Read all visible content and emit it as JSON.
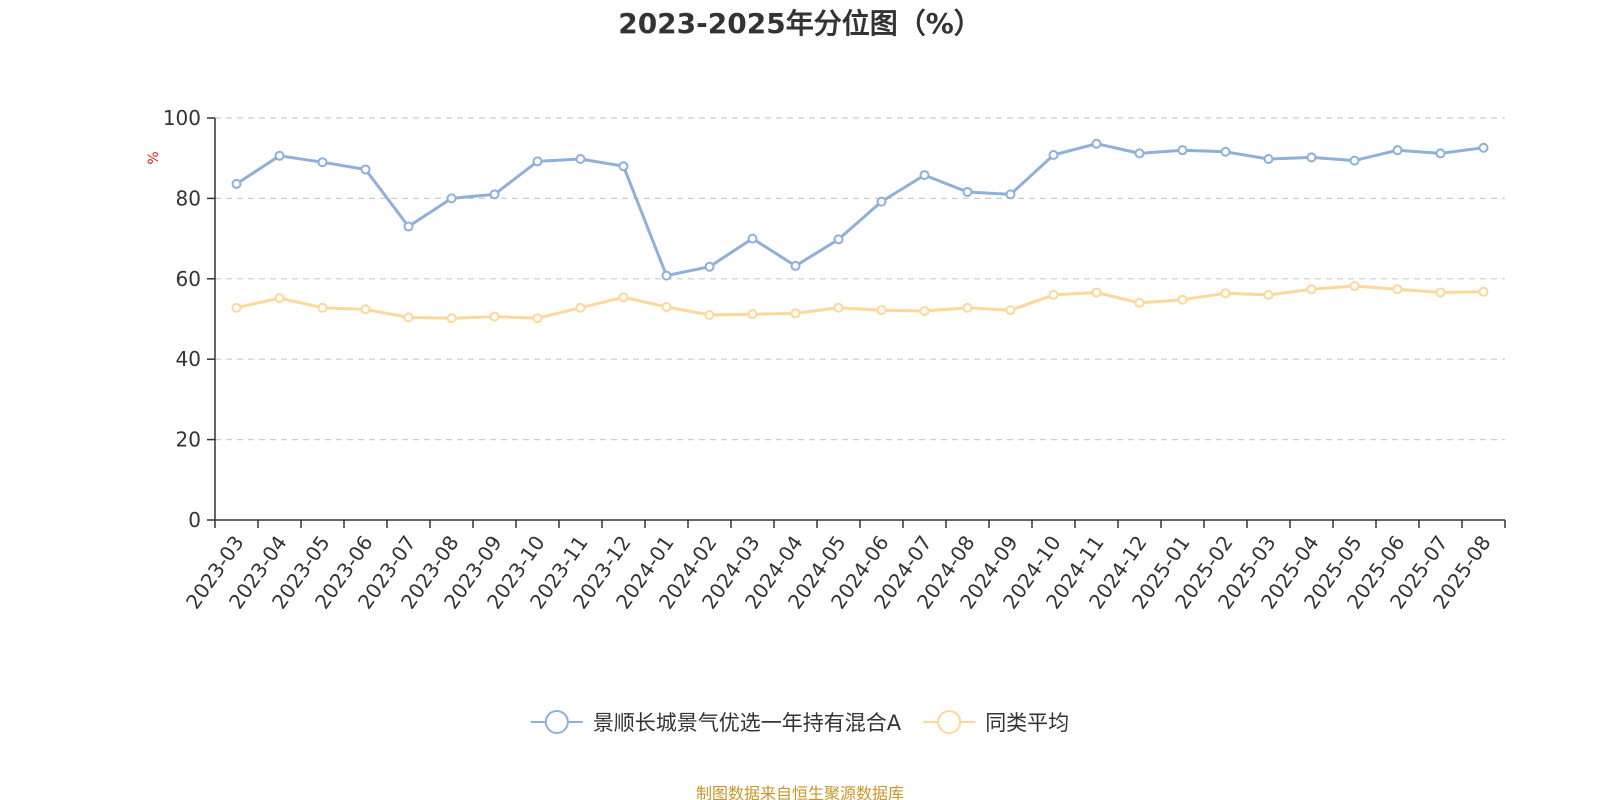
{
  "title": "2023-2025年分位图（%）",
  "source": "制图数据来自恒生聚源数据库",
  "chart_data": {
    "type": "line",
    "title": "2023-2025年分位图（%）",
    "ylabel": "%",
    "xlabel": "",
    "ylim": [
      0,
      100
    ],
    "yticks": [
      0,
      20,
      40,
      60,
      80,
      100
    ],
    "grid": true,
    "legend_position": "bottom",
    "categories": [
      "2023-03",
      "2023-04",
      "2023-05",
      "2023-06",
      "2023-07",
      "2023-08",
      "2023-09",
      "2023-10",
      "2023-11",
      "2023-12",
      "2024-01",
      "2024-02",
      "2024-03",
      "2024-04",
      "2024-05",
      "2024-06",
      "2024-07",
      "2024-08",
      "2024-09",
      "2024-10",
      "2024-11",
      "2024-12",
      "2025-01",
      "2025-02",
      "2025-03",
      "2025-04",
      "2025-05",
      "2025-06",
      "2025-07",
      "2025-08"
    ],
    "series": [
      {
        "name": "景顺长城景气优选一年持有混合A",
        "color": "#8eb0d9",
        "values": [
          83.6,
          90.6,
          89.0,
          87.2,
          73.0,
          80.0,
          81.0,
          89.2,
          89.8,
          88.0,
          60.8,
          63.0,
          70.0,
          63.2,
          69.8,
          79.2,
          85.8,
          81.6,
          81.0,
          90.8,
          93.6,
          91.2,
          92.0,
          91.6,
          89.8,
          90.2,
          89.4,
          92.0,
          91.2,
          92.6
        ]
      },
      {
        "name": "同类平均",
        "color": "#fdd89a",
        "values": [
          52.8,
          55.2,
          52.8,
          52.4,
          50.4,
          50.2,
          50.6,
          50.2,
          52.8,
          55.4,
          53.0,
          51.0,
          51.2,
          51.4,
          52.8,
          52.2,
          52.0,
          52.8,
          52.2,
          56.0,
          56.6,
          54.0,
          54.8,
          56.4,
          56.0,
          57.4,
          58.2,
          57.4,
          56.6,
          56.8
        ]
      }
    ]
  }
}
